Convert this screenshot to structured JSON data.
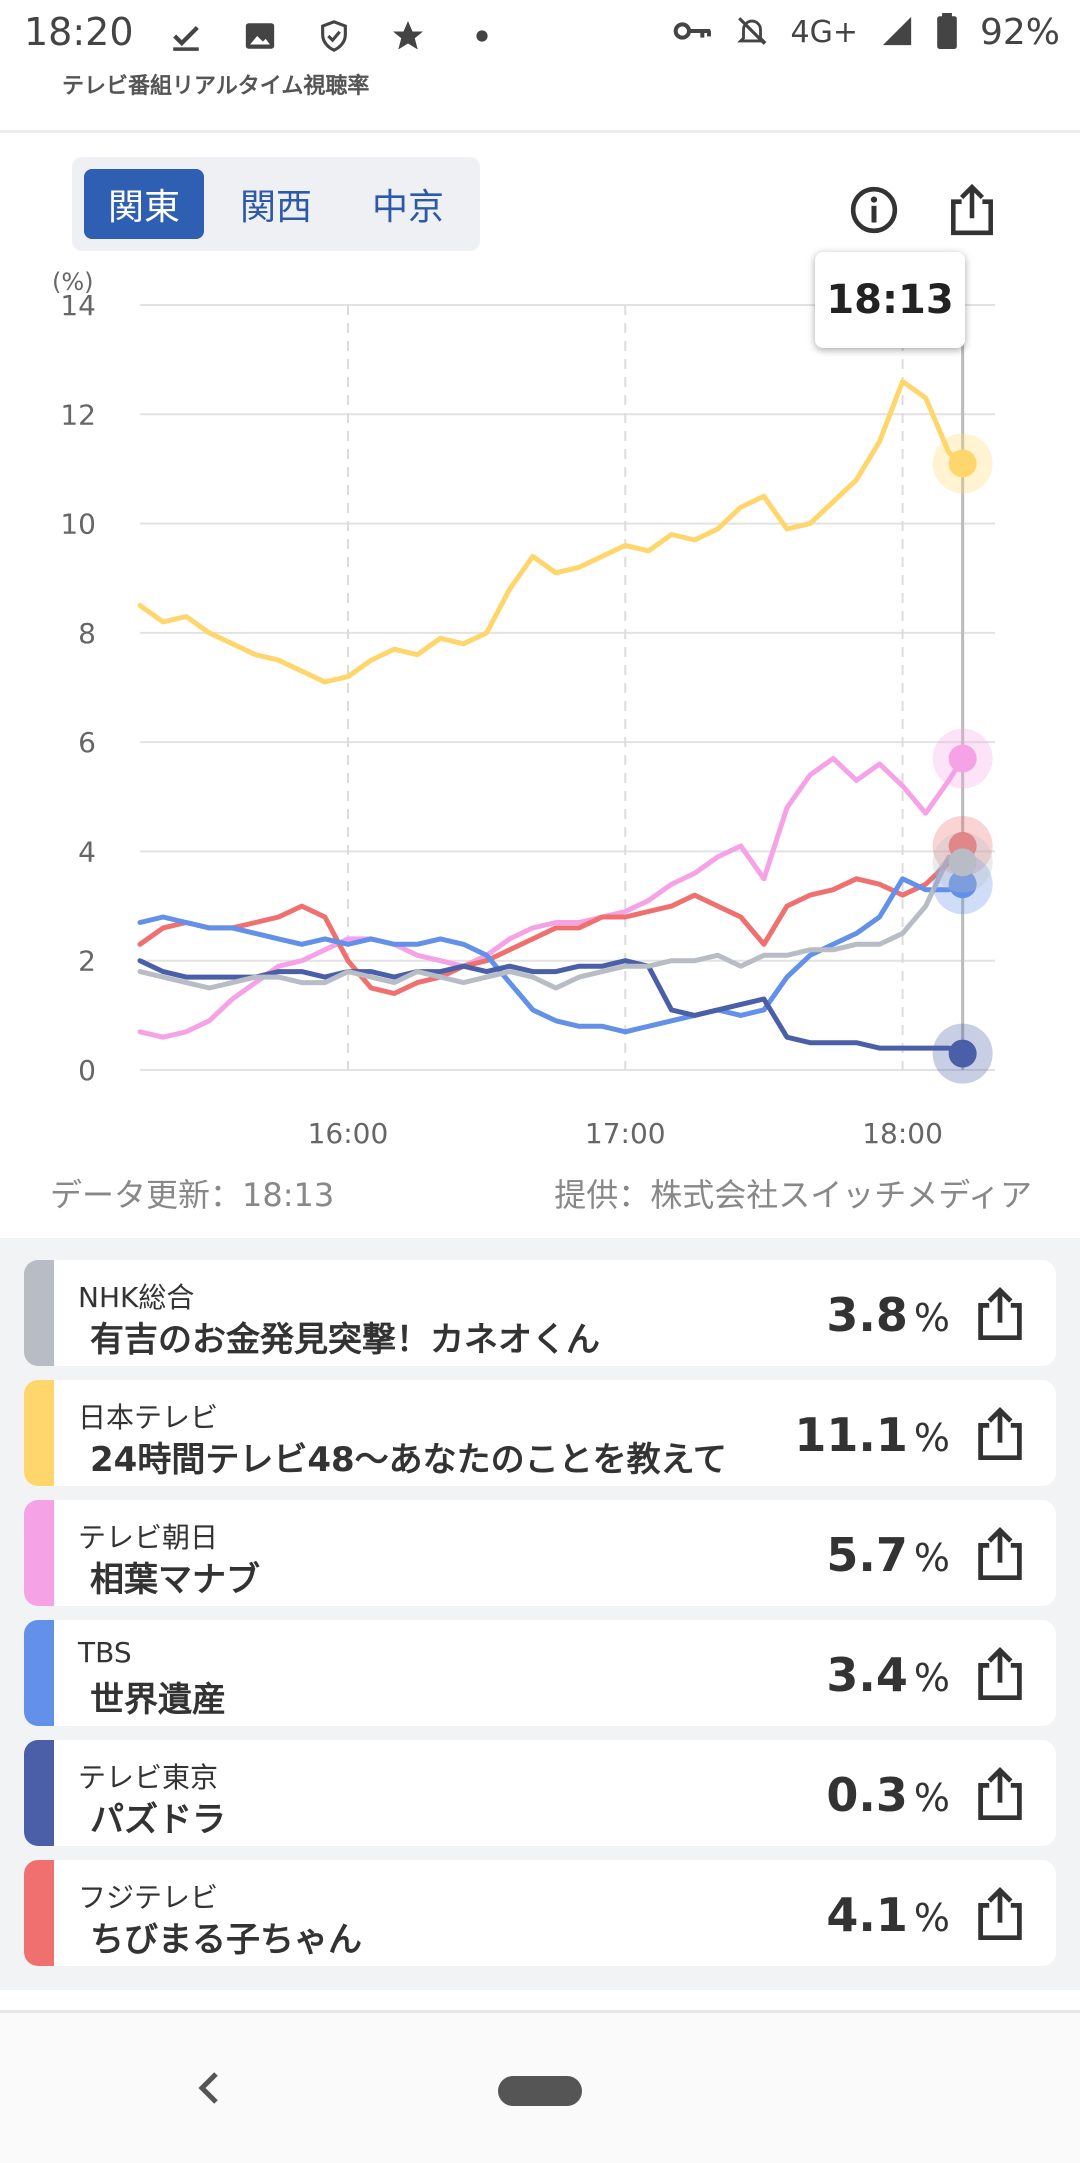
{
  "status": {
    "time": "18:20",
    "network": "4G+",
    "battery": "92%"
  },
  "app": {
    "title": "テレビ番組リアルタイム視聴率"
  },
  "region_tabs": [
    {
      "label": "関東",
      "active": true
    },
    {
      "label": "関西",
      "active": false
    },
    {
      "label": "中京",
      "active": false
    }
  ],
  "tooltip_time": "18:13",
  "footer": {
    "updated": "データ更新：18:13",
    "provider": "提供：株式会社スイッチメディア"
  },
  "chart_data": {
    "type": "line",
    "y_unit_label": "(%)",
    "ylim": [
      0,
      14
    ],
    "yticks": [
      "0",
      "2",
      "4",
      "6",
      "8",
      "10",
      "12",
      "14"
    ],
    "xlim": [
      "15:15",
      "18:20"
    ],
    "xticks": [
      "16:00",
      "17:00",
      "18:00"
    ],
    "cursor_time": "18:13",
    "series": [
      {
        "name": "日本テレビ",
        "color": "#ffd66b",
        "x": [
          "15:15",
          "15:20",
          "15:25",
          "15:30",
          "15:35",
          "15:40",
          "15:45",
          "15:50",
          "15:55",
          "16:00",
          "16:05",
          "16:10",
          "16:15",
          "16:20",
          "16:25",
          "16:30",
          "16:35",
          "16:40",
          "16:45",
          "16:50",
          "16:55",
          "17:00",
          "17:05",
          "17:10",
          "17:15",
          "17:20",
          "17:25",
          "17:30",
          "17:35",
          "17:40",
          "17:45",
          "17:50",
          "17:55",
          "18:00",
          "18:05",
          "18:10",
          "18:13"
        ],
        "values": [
          8.5,
          8.2,
          8.3,
          8.0,
          7.8,
          7.6,
          7.5,
          7.3,
          7.1,
          7.2,
          7.5,
          7.7,
          7.6,
          7.9,
          7.8,
          8.0,
          8.8,
          9.4,
          9.1,
          9.2,
          9.4,
          9.6,
          9.5,
          9.8,
          9.7,
          9.9,
          10.3,
          10.5,
          9.9,
          10.0,
          10.4,
          10.8,
          11.5,
          12.6,
          12.3,
          11.3,
          11.1
        ]
      },
      {
        "name": "テレビ朝日",
        "color": "#f5a3e6",
        "x": [
          "15:15",
          "15:20",
          "15:25",
          "15:30",
          "15:35",
          "15:40",
          "15:45",
          "15:50",
          "15:55",
          "16:00",
          "16:05",
          "16:10",
          "16:15",
          "16:20",
          "16:25",
          "16:30",
          "16:35",
          "16:40",
          "16:45",
          "16:50",
          "16:55",
          "17:00",
          "17:05",
          "17:10",
          "17:15",
          "17:20",
          "17:25",
          "17:30",
          "17:35",
          "17:40",
          "17:45",
          "17:50",
          "17:55",
          "18:00",
          "18:05",
          "18:10",
          "18:13"
        ],
        "values": [
          0.7,
          0.6,
          0.7,
          0.9,
          1.3,
          1.6,
          1.9,
          2.0,
          2.2,
          2.4,
          2.4,
          2.3,
          2.1,
          2.0,
          1.9,
          2.1,
          2.4,
          2.6,
          2.7,
          2.7,
          2.8,
          2.9,
          3.1,
          3.4,
          3.6,
          3.9,
          4.1,
          3.5,
          4.8,
          5.4,
          5.7,
          5.3,
          5.6,
          5.2,
          4.7,
          5.3,
          5.7
        ]
      },
      {
        "name": "フジテレビ",
        "color": "#f07070",
        "x": [
          "15:15",
          "15:20",
          "15:25",
          "15:30",
          "15:35",
          "15:40",
          "15:45",
          "15:50",
          "15:55",
          "16:00",
          "16:05",
          "16:10",
          "16:15",
          "16:20",
          "16:25",
          "16:30",
          "16:35",
          "16:40",
          "16:45",
          "16:50",
          "16:55",
          "17:00",
          "17:05",
          "17:10",
          "17:15",
          "17:20",
          "17:25",
          "17:30",
          "17:35",
          "17:40",
          "17:45",
          "17:50",
          "17:55",
          "18:00",
          "18:05",
          "18:10",
          "18:13"
        ],
        "values": [
          2.3,
          2.6,
          2.7,
          2.6,
          2.6,
          2.7,
          2.8,
          3.0,
          2.8,
          2.0,
          1.5,
          1.4,
          1.6,
          1.7,
          1.9,
          2.0,
          2.2,
          2.4,
          2.6,
          2.6,
          2.8,
          2.8,
          2.9,
          3.0,
          3.2,
          3.0,
          2.8,
          2.3,
          3.0,
          3.2,
          3.3,
          3.5,
          3.4,
          3.2,
          3.4,
          3.8,
          4.1
        ]
      },
      {
        "name": "TBS",
        "color": "#6390e8",
        "x": [
          "15:15",
          "15:20",
          "15:25",
          "15:30",
          "15:35",
          "15:40",
          "15:45",
          "15:50",
          "15:55",
          "16:00",
          "16:05",
          "16:10",
          "16:15",
          "16:20",
          "16:25",
          "16:30",
          "16:35",
          "16:40",
          "16:45",
          "16:50",
          "16:55",
          "17:00",
          "17:05",
          "17:10",
          "17:15",
          "17:20",
          "17:25",
          "17:30",
          "17:35",
          "17:40",
          "17:45",
          "17:50",
          "17:55",
          "18:00",
          "18:05",
          "18:10",
          "18:13"
        ],
        "values": [
          2.7,
          2.8,
          2.7,
          2.6,
          2.6,
          2.5,
          2.4,
          2.3,
          2.4,
          2.3,
          2.4,
          2.3,
          2.3,
          2.4,
          2.3,
          2.1,
          1.6,
          1.1,
          0.9,
          0.8,
          0.8,
          0.7,
          0.8,
          0.9,
          1.0,
          1.1,
          1.0,
          1.1,
          1.7,
          2.1,
          2.3,
          2.5,
          2.8,
          3.5,
          3.3,
          3.3,
          3.4
        ]
      },
      {
        "name": "テレビ東京",
        "color": "#4a5fa8",
        "x": [
          "15:15",
          "15:20",
          "15:25",
          "15:30",
          "15:35",
          "15:40",
          "15:45",
          "15:50",
          "15:55",
          "16:00",
          "16:05",
          "16:10",
          "16:15",
          "16:20",
          "16:25",
          "16:30",
          "16:35",
          "16:40",
          "16:45",
          "16:50",
          "16:55",
          "17:00",
          "17:05",
          "17:10",
          "17:15",
          "17:20",
          "17:25",
          "17:30",
          "17:35",
          "17:40",
          "17:45",
          "17:50",
          "17:55",
          "18:00",
          "18:05",
          "18:10",
          "18:13"
        ],
        "values": [
          2.0,
          1.8,
          1.7,
          1.7,
          1.7,
          1.7,
          1.8,
          1.8,
          1.7,
          1.8,
          1.8,
          1.7,
          1.8,
          1.8,
          1.9,
          1.8,
          1.9,
          1.8,
          1.8,
          1.9,
          1.9,
          2.0,
          1.9,
          1.1,
          1.0,
          1.1,
          1.2,
          1.3,
          0.6,
          0.5,
          0.5,
          0.5,
          0.4,
          0.4,
          0.4,
          0.4,
          0.3
        ]
      },
      {
        "name": "NHK総合",
        "color": "#b8bcc4",
        "x": [
          "15:15",
          "15:20",
          "15:25",
          "15:30",
          "15:35",
          "15:40",
          "15:45",
          "15:50",
          "15:55",
          "16:00",
          "16:05",
          "16:10",
          "16:15",
          "16:20",
          "16:25",
          "16:30",
          "16:35",
          "16:40",
          "16:45",
          "16:50",
          "16:55",
          "17:00",
          "17:05",
          "17:10",
          "17:15",
          "17:20",
          "17:25",
          "17:30",
          "17:35",
          "17:40",
          "17:45",
          "17:50",
          "17:55",
          "18:00",
          "18:05",
          "18:10",
          "18:13"
        ],
        "values": [
          1.8,
          1.7,
          1.6,
          1.5,
          1.6,
          1.7,
          1.7,
          1.6,
          1.6,
          1.8,
          1.7,
          1.6,
          1.8,
          1.7,
          1.6,
          1.7,
          1.8,
          1.7,
          1.5,
          1.7,
          1.8,
          1.9,
          1.9,
          2.0,
          2.0,
          2.1,
          1.9,
          2.1,
          2.1,
          2.2,
          2.2,
          2.3,
          2.3,
          2.5,
          3.0,
          3.9,
          3.8
        ]
      }
    ]
  },
  "programs": [
    {
      "channel": "NHK総合",
      "program": "有吉のお金発見突撃！カネオくん",
      "rating": "3.8",
      "unit": "%",
      "color": "#b8bcc4"
    },
    {
      "channel": "日本テレビ",
      "program": "24時間テレビ48〜あなたのことを教えて",
      "rating": "11.1",
      "unit": "%",
      "color": "#ffd66b"
    },
    {
      "channel": "テレビ朝日",
      "program": "相葉マナブ",
      "rating": "5.7",
      "unit": "%",
      "color": "#f5a3e6"
    },
    {
      "channel": "TBS",
      "program": "世界遺産",
      "rating": "3.4",
      "unit": "%",
      "color": "#6390e8"
    },
    {
      "channel": "テレビ東京",
      "program": "パズドラ",
      "rating": "0.3",
      "unit": "%",
      "color": "#4a5fa8"
    },
    {
      "channel": "フジテレビ",
      "program": "ちびまる子ちゃん",
      "rating": "4.1",
      "unit": "%",
      "color": "#f07070"
    }
  ]
}
